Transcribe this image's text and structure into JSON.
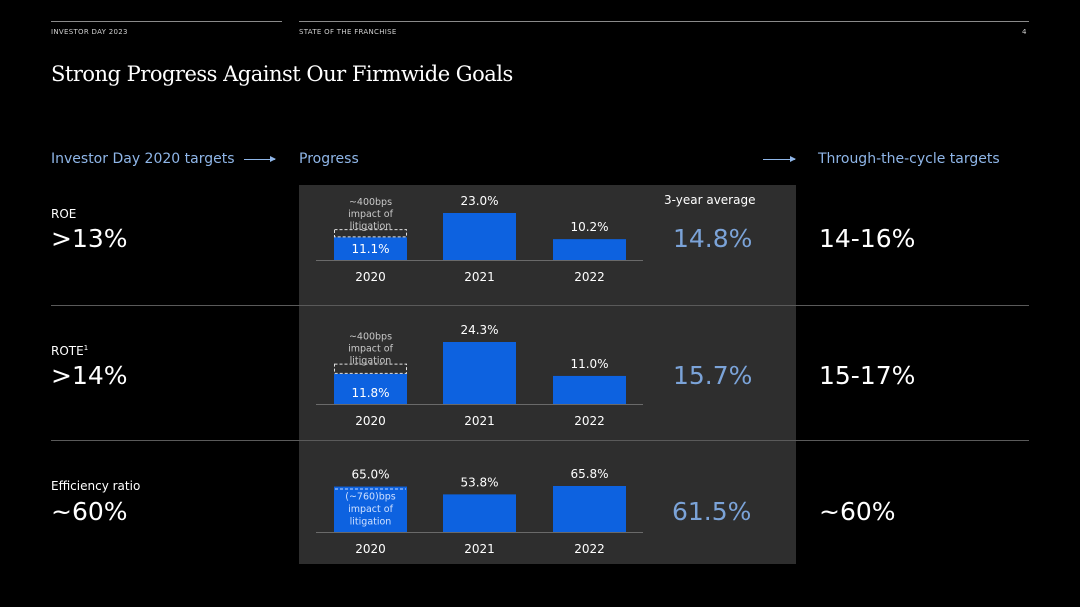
{
  "header": {
    "left": "INVESTOR DAY 2023",
    "middle": "STATE OF THE FRANCHISE",
    "page_number": "4"
  },
  "title": "Strong Progress Against Our Firmwide Goals",
  "columns": {
    "targets_2020": "Investor Day 2020 targets",
    "progress": "Progress",
    "average": "3-year average",
    "cycle": "Through-the-cycle targets"
  },
  "rows": [
    {
      "label": "ROE",
      "footnote": "",
      "target_2020": ">13%",
      "average": "14.8%",
      "cycle_target": "14-16%"
    },
    {
      "label": "ROTE",
      "footnote": "1",
      "target_2020": ">14%",
      "average": "15.7%",
      "cycle_target": "15-17%"
    },
    {
      "label": "Efficiency ratio",
      "footnote": "",
      "target_2020": "~60%",
      "average": "61.5%",
      "cycle_target": "~60%"
    }
  ],
  "colors": {
    "bar": "#0d62e0",
    "panel": "#2e2e2e",
    "accent_text": "#7ba3d8",
    "arrow": "#8fb6e8"
  },
  "chart_data": [
    {
      "type": "bar",
      "title": "ROE",
      "categories": [
        "2020",
        "2021",
        "2022"
      ],
      "values": [
        11.1,
        23.0,
        10.2
      ],
      "value_labels": [
        "11.1%",
        "23.0%",
        "10.2%"
      ],
      "ylim": [
        0,
        23.0
      ],
      "annotation": {
        "category": "2020",
        "text": "~400bps impact of litigation",
        "bps": 400,
        "direction": "up"
      }
    },
    {
      "type": "bar",
      "title": "ROTE",
      "categories": [
        "2020",
        "2021",
        "2022"
      ],
      "values": [
        11.8,
        24.3,
        11.0
      ],
      "value_labels": [
        "11.8%",
        "24.3%",
        "11.0%"
      ],
      "ylim": [
        0,
        24.3
      ],
      "annotation": {
        "category": "2020",
        "text": "~400bps impact of litigation",
        "bps": 400,
        "direction": "up"
      }
    },
    {
      "type": "bar",
      "title": "Efficiency ratio",
      "categories": [
        "2020",
        "2021",
        "2022"
      ],
      "values": [
        65.0,
        53.8,
        65.8
      ],
      "value_labels": [
        "65.0%",
        "53.8%",
        "65.8%"
      ],
      "ylim": [
        0,
        65.8
      ],
      "annotation": {
        "category": "2020",
        "text": "(~760)bps impact of litigation",
        "bps": -760,
        "direction": "inside"
      }
    }
  ]
}
